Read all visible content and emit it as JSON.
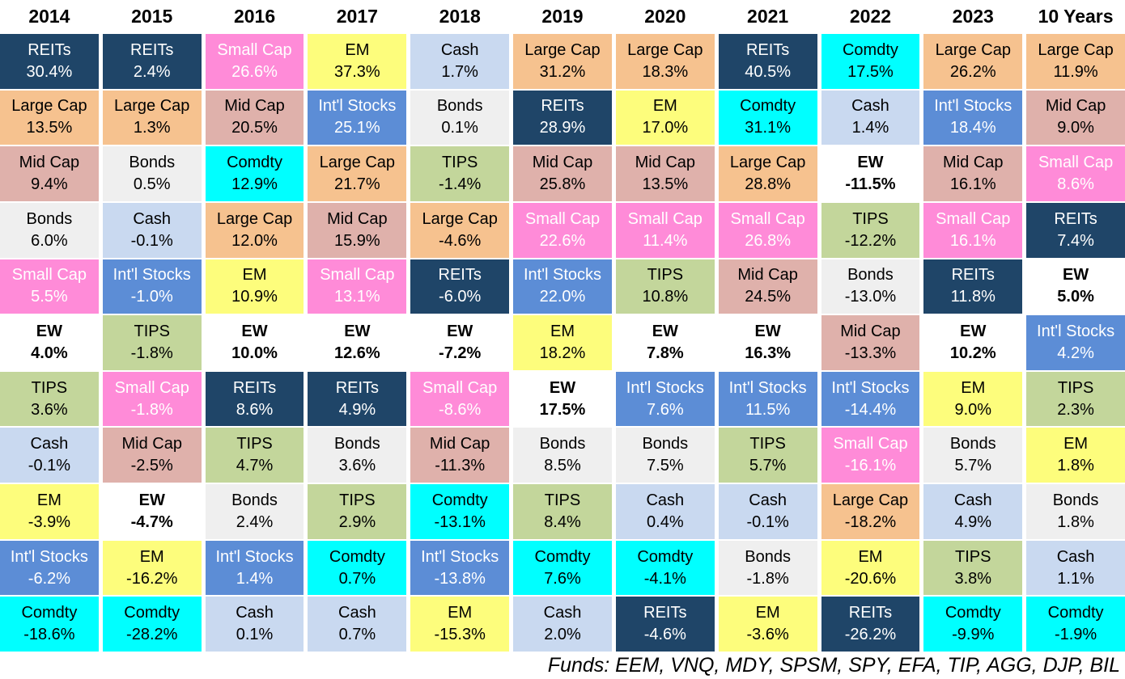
{
  "chart_data": {
    "type": "table",
    "columns": [
      "2014",
      "2015",
      "2016",
      "2017",
      "2018",
      "2019",
      "2020",
      "2021",
      "2022",
      "2023",
      "10 Years"
    ],
    "ranked_returns": {
      "2014": [
        [
          "REITs",
          30.4
        ],
        [
          "Large Cap",
          13.5
        ],
        [
          "Mid Cap",
          9.4
        ],
        [
          "Bonds",
          6.0
        ],
        [
          "Small Cap",
          5.5
        ],
        [
          "EW",
          4.0
        ],
        [
          "TIPS",
          3.6
        ],
        [
          "Cash",
          -0.1
        ],
        [
          "EM",
          -3.9
        ],
        [
          "Int'l Stocks",
          -6.2
        ],
        [
          "Comdty",
          -18.6
        ]
      ],
      "2015": [
        [
          "REITs",
          2.4
        ],
        [
          "Large Cap",
          1.3
        ],
        [
          "Bonds",
          0.5
        ],
        [
          "Cash",
          -0.1
        ],
        [
          "Int'l Stocks",
          -1.0
        ],
        [
          "TIPS",
          -1.8
        ],
        [
          "Small Cap",
          -1.8
        ],
        [
          "Mid Cap",
          -2.5
        ],
        [
          "EW",
          -4.7
        ],
        [
          "EM",
          -16.2
        ],
        [
          "Comdty",
          -28.2
        ]
      ],
      "2016": [
        [
          "Small Cap",
          26.6
        ],
        [
          "Mid Cap",
          20.5
        ],
        [
          "Comdty",
          12.9
        ],
        [
          "Large Cap",
          12.0
        ],
        [
          "EM",
          10.9
        ],
        [
          "EW",
          10.0
        ],
        [
          "REITs",
          8.6
        ],
        [
          "TIPS",
          4.7
        ],
        [
          "Bonds",
          2.4
        ],
        [
          "Int'l Stocks",
          1.4
        ],
        [
          "Cash",
          0.1
        ]
      ],
      "2017": [
        [
          "EM",
          37.3
        ],
        [
          "Int'l Stocks",
          25.1
        ],
        [
          "Large Cap",
          21.7
        ],
        [
          "Mid Cap",
          15.9
        ],
        [
          "Small Cap",
          13.1
        ],
        [
          "EW",
          12.6
        ],
        [
          "REITs",
          4.9
        ],
        [
          "Bonds",
          3.6
        ],
        [
          "TIPS",
          2.9
        ],
        [
          "Comdty",
          0.7
        ],
        [
          "Cash",
          0.7
        ]
      ],
      "2018": [
        [
          "Cash",
          1.7
        ],
        [
          "Bonds",
          0.1
        ],
        [
          "TIPS",
          -1.4
        ],
        [
          "Large Cap",
          -4.6
        ],
        [
          "REITs",
          -6.0
        ],
        [
          "EW",
          -7.2
        ],
        [
          "Small Cap",
          -8.6
        ],
        [
          "Mid Cap",
          -11.3
        ],
        [
          "Comdty",
          -13.1
        ],
        [
          "Int'l Stocks",
          -13.8
        ],
        [
          "EM",
          -15.3
        ]
      ],
      "2019": [
        [
          "Large Cap",
          31.2
        ],
        [
          "REITs",
          28.9
        ],
        [
          "Mid Cap",
          25.8
        ],
        [
          "Small Cap",
          22.6
        ],
        [
          "Int'l Stocks",
          22.0
        ],
        [
          "EM",
          18.2
        ],
        [
          "EW",
          17.5
        ],
        [
          "Bonds",
          8.5
        ],
        [
          "TIPS",
          8.4
        ],
        [
          "Comdty",
          7.6
        ],
        [
          "Cash",
          2.0
        ]
      ],
      "2020": [
        [
          "Large Cap",
          18.3
        ],
        [
          "EM",
          17.0
        ],
        [
          "Mid Cap",
          13.5
        ],
        [
          "Small Cap",
          11.4
        ],
        [
          "TIPS",
          10.8
        ],
        [
          "EW",
          7.8
        ],
        [
          "Int'l Stocks",
          7.6
        ],
        [
          "Bonds",
          7.5
        ],
        [
          "Cash",
          0.4
        ],
        [
          "Comdty",
          -4.1
        ],
        [
          "REITs",
          -4.6
        ]
      ],
      "2021": [
        [
          "REITs",
          40.5
        ],
        [
          "Comdty",
          31.1
        ],
        [
          "Large Cap",
          28.8
        ],
        [
          "Small Cap",
          26.8
        ],
        [
          "Mid Cap",
          24.5
        ],
        [
          "EW",
          16.3
        ],
        [
          "Int'l Stocks",
          11.5
        ],
        [
          "TIPS",
          5.7
        ],
        [
          "Cash",
          -0.1
        ],
        [
          "Bonds",
          -1.8
        ],
        [
          "EM",
          -3.6
        ]
      ],
      "2022": [
        [
          "Comdty",
          17.5
        ],
        [
          "Cash",
          1.4
        ],
        [
          "EW",
          -11.5
        ],
        [
          "TIPS",
          -12.2
        ],
        [
          "Bonds",
          -13.0
        ],
        [
          "Mid Cap",
          -13.3
        ],
        [
          "Int'l Stocks",
          -14.4
        ],
        [
          "Small Cap",
          -16.1
        ],
        [
          "Large Cap",
          -18.2
        ],
        [
          "EM",
          -20.6
        ],
        [
          "REITs",
          -26.2
        ]
      ],
      "2023": [
        [
          "Large Cap",
          26.2
        ],
        [
          "Int'l Stocks",
          18.4
        ],
        [
          "Mid Cap",
          16.1
        ],
        [
          "Small Cap",
          16.1
        ],
        [
          "REITs",
          11.8
        ],
        [
          "EW",
          10.2
        ],
        [
          "EM",
          9.0
        ],
        [
          "Bonds",
          5.7
        ],
        [
          "Cash",
          4.9
        ],
        [
          "TIPS",
          3.8
        ],
        [
          "Comdty",
          -9.9
        ]
      ],
      "10 Years": [
        [
          "Large Cap",
          11.9
        ],
        [
          "Mid Cap",
          9.0
        ],
        [
          "Small Cap",
          8.6
        ],
        [
          "REITs",
          7.4
        ],
        [
          "EW",
          5.0
        ],
        [
          "Int'l Stocks",
          4.2
        ],
        [
          "TIPS",
          2.3
        ],
        [
          "EM",
          1.8
        ],
        [
          "Bonds",
          1.8
        ],
        [
          "Cash",
          1.1
        ],
        [
          "Comdty",
          -1.9
        ]
      ]
    },
    "asset_styles": {
      "REITs": {
        "bg": "#1F4568",
        "fg": "#FFFFFF",
        "bold": false
      },
      "Large Cap": {
        "bg": "#F6C28F",
        "fg": "#000000",
        "bold": false
      },
      "Mid Cap": {
        "bg": "#DFB1AB",
        "fg": "#000000",
        "bold": false
      },
      "Bonds": {
        "bg": "#EFEFEF",
        "fg": "#000000",
        "bold": false
      },
      "Small Cap": {
        "bg": "#FF8BD8",
        "fg": "#FFFFFF",
        "bold": false
      },
      "EW": {
        "bg": "#FFFFFF",
        "fg": "#000000",
        "bold": true
      },
      "TIPS": {
        "bg": "#C3D69B",
        "fg": "#000000",
        "bold": false
      },
      "Cash": {
        "bg": "#C9D9F0",
        "fg": "#000000",
        "bold": false
      },
      "EM": {
        "bg": "#FDFD7C",
        "fg": "#000000",
        "bold": false
      },
      "Int'l Stocks": {
        "bg": "#5C8DD6",
        "fg": "#FFFFFF",
        "bold": false
      },
      "Comdty": {
        "bg": "#00FFFF",
        "fg": "#000000",
        "bold": false
      }
    },
    "value_format": "percent_one_decimal",
    "footer": "Funds: EEM, VNQ, MDY, SPSM, SPY, EFA, TIP, AGG, DJP, BIL"
  }
}
